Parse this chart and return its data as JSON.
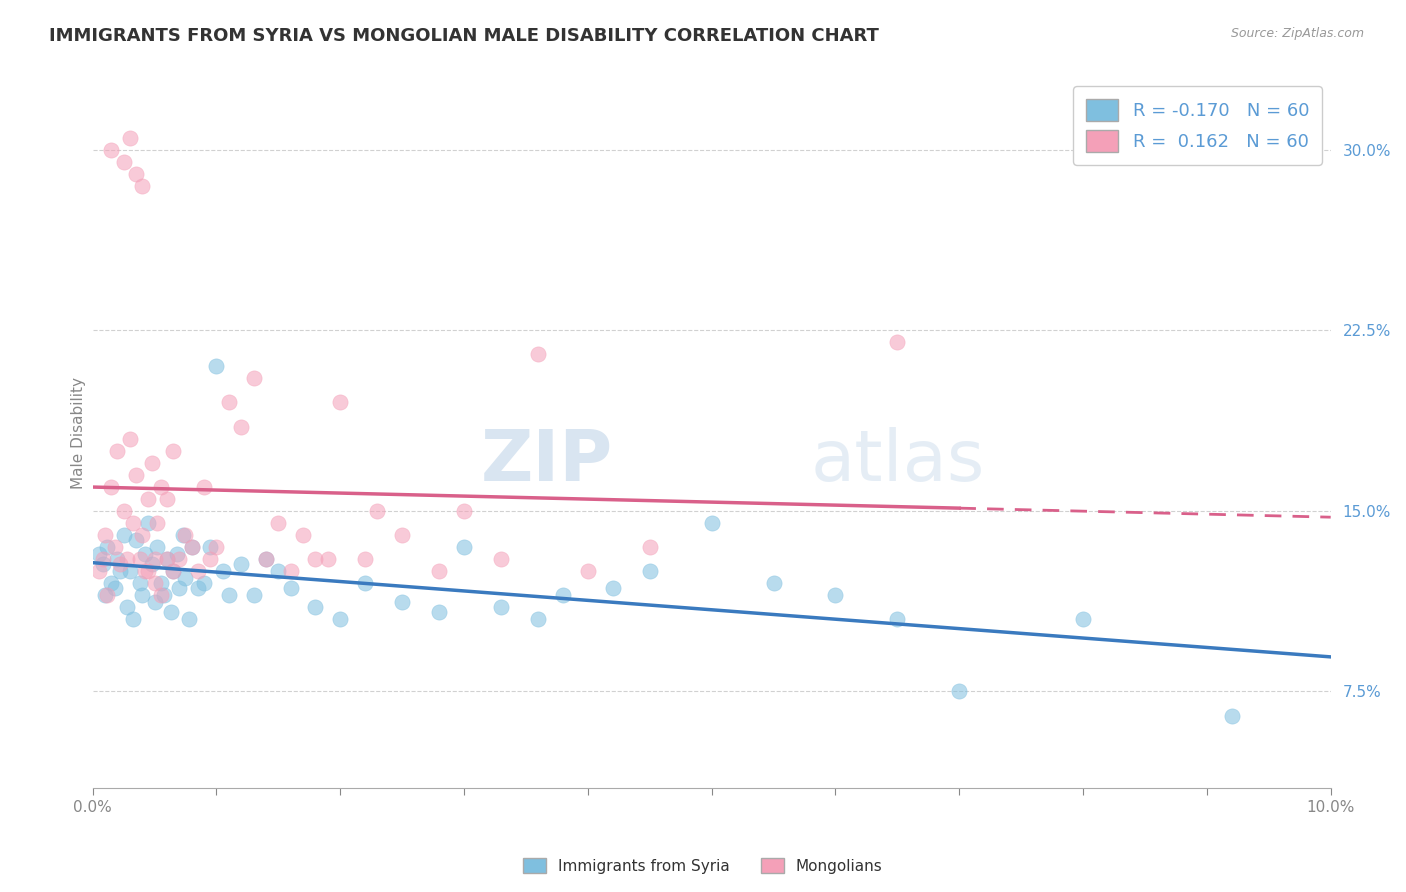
{
  "title": "IMMIGRANTS FROM SYRIA VS MONGOLIAN MALE DISABILITY CORRELATION CHART",
  "source": "Source: ZipAtlas.com",
  "ylabel": "Male Disability",
  "xlim": [
    0.0,
    10.0
  ],
  "ylim": [
    3.5,
    33.0
  ],
  "yticks": [
    7.5,
    15.0,
    22.5,
    30.0
  ],
  "legend_R1": "-0.170",
  "legend_R2": " 0.162",
  "legend_N": "60",
  "blue_color": "#7fbfdf",
  "pink_color": "#f4a0b8",
  "blue_line_color": "#3a7abf",
  "pink_line_color": "#d9608a",
  "watermark_zip": "ZIP",
  "watermark_atlas": "atlas",
  "syria_x": [
    0.05,
    0.08,
    0.1,
    0.12,
    0.15,
    0.18,
    0.2,
    0.22,
    0.25,
    0.28,
    0.3,
    0.33,
    0.35,
    0.38,
    0.4,
    0.42,
    0.45,
    0.48,
    0.5,
    0.52,
    0.55,
    0.58,
    0.6,
    0.63,
    0.65,
    0.68,
    0.7,
    0.73,
    0.75,
    0.78,
    0.8,
    0.85,
    0.9,
    0.95,
    1.0,
    1.05,
    1.1,
    1.2,
    1.3,
    1.4,
    1.5,
    1.6,
    1.8,
    2.0,
    2.2,
    2.5,
    2.8,
    3.0,
    3.3,
    3.6,
    3.8,
    4.2,
    4.5,
    5.0,
    5.5,
    6.0,
    6.5,
    7.0,
    8.0,
    9.2
  ],
  "syria_y": [
    13.2,
    12.8,
    11.5,
    13.5,
    12.0,
    11.8,
    13.0,
    12.5,
    14.0,
    11.0,
    12.5,
    10.5,
    13.8,
    12.0,
    11.5,
    13.2,
    14.5,
    12.8,
    11.2,
    13.5,
    12.0,
    11.5,
    13.0,
    10.8,
    12.5,
    13.2,
    11.8,
    14.0,
    12.2,
    10.5,
    13.5,
    11.8,
    12.0,
    13.5,
    21.0,
    12.5,
    11.5,
    12.8,
    11.5,
    13.0,
    12.5,
    11.8,
    11.0,
    10.5,
    12.0,
    11.2,
    10.8,
    13.5,
    11.0,
    10.5,
    11.5,
    11.8,
    12.5,
    14.5,
    12.0,
    11.5,
    10.5,
    7.5,
    10.5,
    6.5
  ],
  "mongol_x": [
    0.05,
    0.08,
    0.1,
    0.12,
    0.15,
    0.18,
    0.2,
    0.22,
    0.25,
    0.28,
    0.3,
    0.33,
    0.35,
    0.38,
    0.4,
    0.42,
    0.45,
    0.48,
    0.5,
    0.52,
    0.55,
    0.6,
    0.65,
    0.7,
    0.75,
    0.8,
    0.85,
    0.9,
    0.95,
    1.0,
    1.1,
    1.2,
    1.3,
    1.4,
    1.5,
    1.6,
    1.7,
    1.8,
    1.9,
    2.0,
    2.2,
    2.5,
    2.8,
    3.0,
    3.3,
    3.6,
    4.0,
    4.5,
    2.3,
    0.25,
    0.3,
    0.35,
    0.4,
    0.45,
    0.5,
    0.55,
    0.6,
    0.65,
    6.5,
    0.15
  ],
  "mongol_y": [
    12.5,
    13.0,
    14.0,
    11.5,
    16.0,
    13.5,
    17.5,
    12.8,
    15.0,
    13.0,
    18.0,
    14.5,
    16.5,
    13.0,
    14.0,
    12.5,
    15.5,
    17.0,
    13.0,
    14.5,
    16.0,
    15.5,
    17.5,
    13.0,
    14.0,
    13.5,
    12.5,
    16.0,
    13.0,
    13.5,
    19.5,
    18.5,
    20.5,
    13.0,
    14.5,
    12.5,
    14.0,
    13.0,
    13.0,
    19.5,
    13.0,
    14.0,
    12.5,
    15.0,
    13.0,
    21.5,
    12.5,
    13.5,
    15.0,
    29.5,
    30.5,
    29.0,
    28.5,
    12.5,
    12.0,
    11.5,
    13.0,
    12.5,
    22.0,
    30.0
  ]
}
